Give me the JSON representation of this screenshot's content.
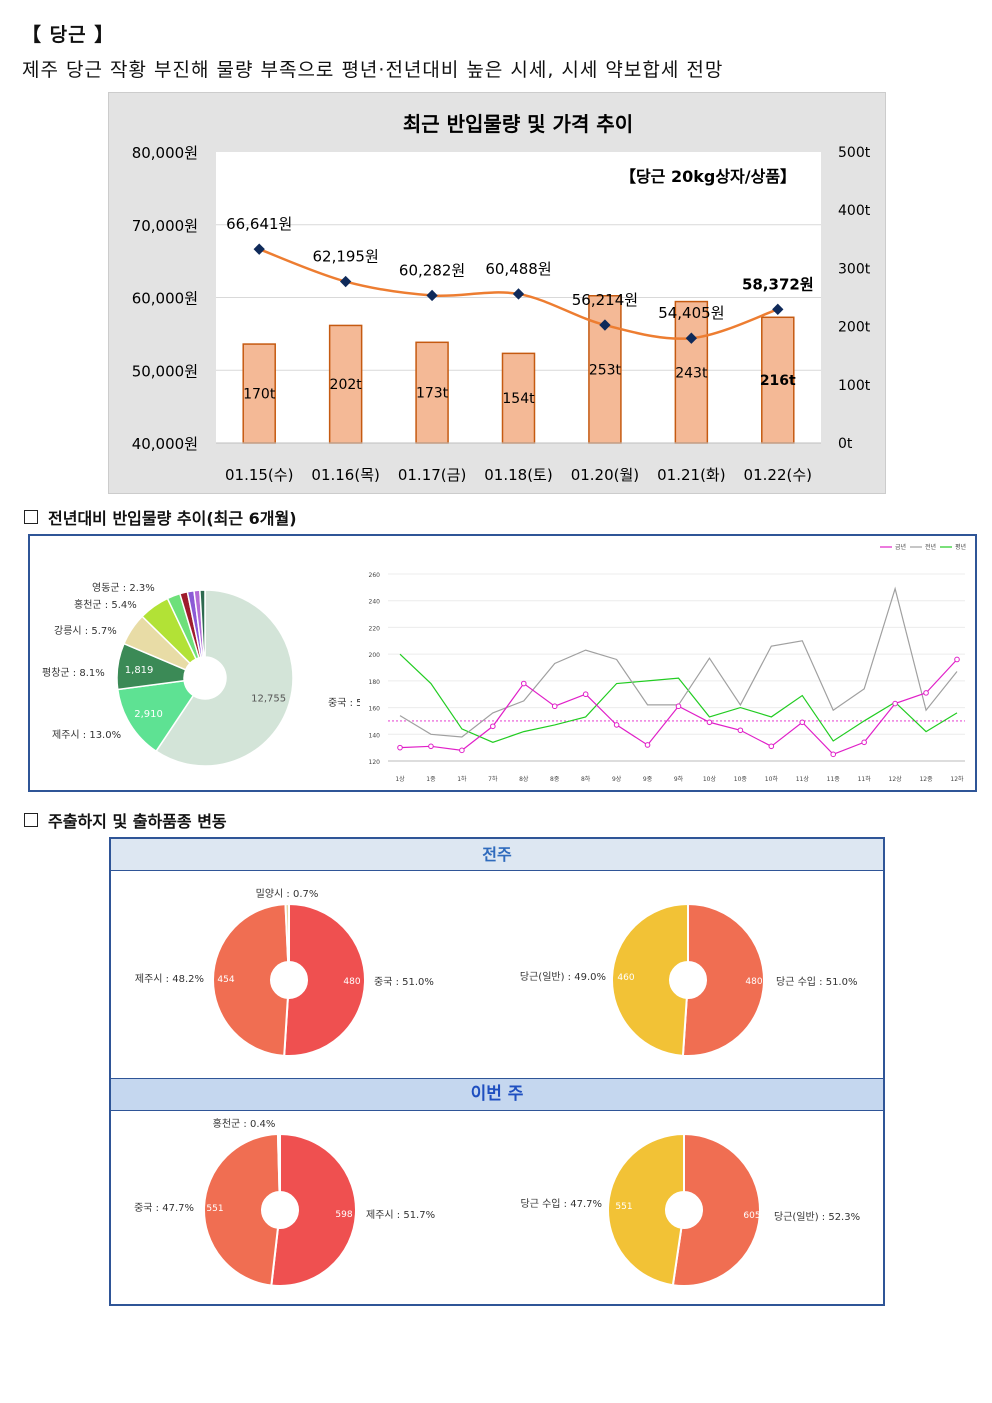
{
  "header": {
    "title": "【 당근 】",
    "subtitle": "제주 당근 작황 부진해 물량 부족으로 평년·전년대비 높은 시세, 시세 약보합세 전망"
  },
  "chart_data": [
    {
      "type": "bar+line",
      "title": "최근 반입물량 및 가격 추이",
      "annotation": "【당근 20kg상자/상품】",
      "categories": [
        "01.15(수)",
        "01.16(목)",
        "01.17(금)",
        "01.18(토)",
        "01.20(월)",
        "01.21(화)",
        "01.22(수)"
      ],
      "bars": {
        "unit": "t",
        "values": [
          170,
          202,
          173,
          154,
          253,
          243,
          216
        ],
        "labels": [
          "170t",
          "202t",
          "173t",
          "154t",
          "253t",
          "243t",
          "216t"
        ]
      },
      "line": {
        "unit": "원",
        "values": [
          66641,
          62195,
          60282,
          60488,
          56214,
          54405,
          58372
        ],
        "labels": [
          "66,641원",
          "62,195원",
          "60,282원",
          "60,488원",
          "56,214원",
          "54,405원",
          "58,372원"
        ]
      },
      "y_left": {
        "ylim": [
          40000,
          80000
        ],
        "ticks": [
          "40,000원",
          "50,000원",
          "60,000원",
          "70,000원",
          "80,000원"
        ]
      },
      "y_right": {
        "ylim": [
          0,
          500
        ],
        "ticks": [
          "0t",
          "100t",
          "200t",
          "300t",
          "400t",
          "500t"
        ]
      },
      "colors": {
        "bar": "#f4b996",
        "bar_edge": "#c55a11",
        "line": "#ed7d31",
        "marker": "#0f2a5a"
      }
    },
    {
      "type": "pie",
      "slices": [
        {
          "label": "중국 : 56.8%",
          "value": 12755,
          "value_label": "12,755",
          "color": "#d3e4d8"
        },
        {
          "label": "제주시 : 13.0%",
          "value": 2910,
          "value_label": "2,910",
          "color": "#5ee293"
        },
        {
          "label": "평창군 : 8.1%",
          "value": 1819,
          "value_label": "1,819",
          "color": "#3b8a56"
        },
        {
          "label": "강릉시 : 5.7%",
          "value": 1280,
          "value_label": "",
          "color": "#e8dca6"
        },
        {
          "label": "홍천군 : 5.4%",
          "value": 1213,
          "value_label": "",
          "color": "#b2e236"
        },
        {
          "label": "영동군 : 2.3%",
          "value": 516,
          "value_label": "",
          "color": "#6ee07a"
        },
        {
          "label": "",
          "value": 300,
          "value_label": "",
          "color": "#9e1c2c"
        },
        {
          "label": "",
          "value": 260,
          "value_label": "",
          "color": "#8b5ad6"
        },
        {
          "label": "",
          "value": 230,
          "value_label": "",
          "color": "#b26ad6"
        },
        {
          "label": "",
          "value": 200,
          "value_label": "",
          "color": "#2d6a4f"
        }
      ]
    },
    {
      "type": "line",
      "legend": [
        "금년",
        "전년",
        "평년"
      ],
      "legend_placement": "top-right",
      "x": [
        "1상",
        "1중",
        "1하",
        "7하",
        "8상",
        "8중",
        "8하",
        "9상",
        "9중",
        "9하",
        "10상",
        "10중",
        "10하",
        "11상",
        "11중",
        "11하",
        "12상",
        "12중",
        "12하"
      ],
      "ylim": [
        120,
        260
      ],
      "yticks": [
        120,
        140,
        160,
        180,
        200,
        220,
        240,
        260
      ],
      "series": [
        {
          "name": "금년",
          "color": "#e020c8",
          "values": [
            130,
            131,
            128,
            146,
            178,
            161,
            170,
            147,
            132,
            161,
            149,
            143,
            131,
            149,
            125,
            134,
            163,
            171,
            196
          ]
        },
        {
          "name": "전년",
          "color": "#a0a0a0",
          "values": [
            154,
            140,
            138,
            156,
            165,
            193,
            203,
            196,
            162,
            162,
            197,
            162,
            206,
            210,
            158,
            174,
            249,
            158,
            187
          ]
        },
        {
          "name": "평년",
          "color": "#22cc22",
          "values": [
            200,
            178,
            144,
            134,
            142,
            147,
            153,
            178,
            180,
            182,
            153,
            160,
            153,
            169,
            135,
            150,
            164,
            142,
            156
          ]
        }
      ],
      "reference_line": 150
    },
    {
      "type": "pie",
      "group": "전주",
      "slices": [
        {
          "label": "중국 : 51.0%",
          "value": 480,
          "color": "#ef5050"
        },
        {
          "label": "제주시 : 48.2%",
          "value": 454,
          "color": "#f06e52"
        },
        {
          "label": "밀양시 : 0.7%",
          "value": 7,
          "color": "#e8d6a0"
        }
      ]
    },
    {
      "type": "pie",
      "group": "전주",
      "slices": [
        {
          "label": "당근 수입 : 51.0%",
          "value": 480,
          "color": "#f06e52"
        },
        {
          "label": "당근(일반) : 49.0%",
          "value": 460,
          "color": "#f2c236"
        }
      ]
    },
    {
      "type": "pie",
      "group": "이번 주",
      "slices": [
        {
          "label": "제주시 : 51.7%",
          "value": 598,
          "color": "#ef5050"
        },
        {
          "label": "중국 : 47.7%",
          "value": 551,
          "color": "#f06e52"
        },
        {
          "label": "홍천군 : 0.4%",
          "value": 5,
          "color": "#e8d6a0"
        }
      ]
    },
    {
      "type": "pie",
      "group": "이번 주",
      "slices": [
        {
          "label": "당근(일반) : 52.3%",
          "value": 605,
          "color": "#f06e52"
        },
        {
          "label": "당근 수입 : 47.7%",
          "value": 551,
          "color": "#f2c236"
        }
      ]
    }
  ],
  "sections": {
    "volume_trend": "전년대비 반입물량 추이(최근 6개월)",
    "origin_change": "주출하지 및 출하품종 변동"
  },
  "tables": {
    "last_week": "전주",
    "this_week": "이번 주"
  }
}
